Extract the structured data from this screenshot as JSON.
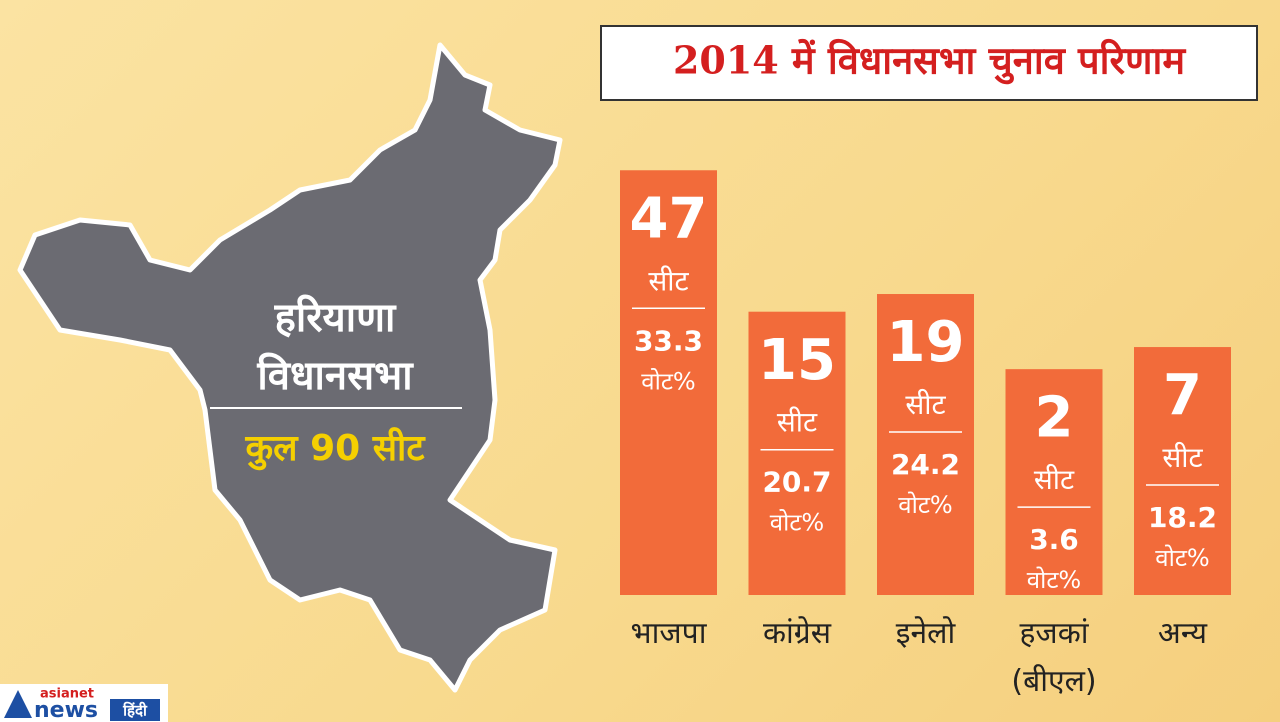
{
  "chart_data": {
    "type": "bar",
    "title": "2014 में विधानसभा चुनाव परिणाम",
    "categories": [
      "भाजपा",
      "कांग्रेस",
      "इनेलो",
      "हजकां (बीएल)",
      "अन्य"
    ],
    "series": [
      {
        "name": "सीट",
        "color": "#f26b3a",
        "values": [
          47,
          15,
          19,
          2,
          7
        ]
      },
      {
        "name": "वोट%",
        "values": [
          33.3,
          20.7,
          24.2,
          3.6,
          18.2
        ]
      }
    ]
  },
  "map": {
    "lines": [
      "हरियाणा",
      "विधानसभा"
    ],
    "total": "कुल 90 सीट"
  },
  "logo": {
    "brand": "asianet",
    "news": "news",
    "lang": "हिंदी"
  }
}
